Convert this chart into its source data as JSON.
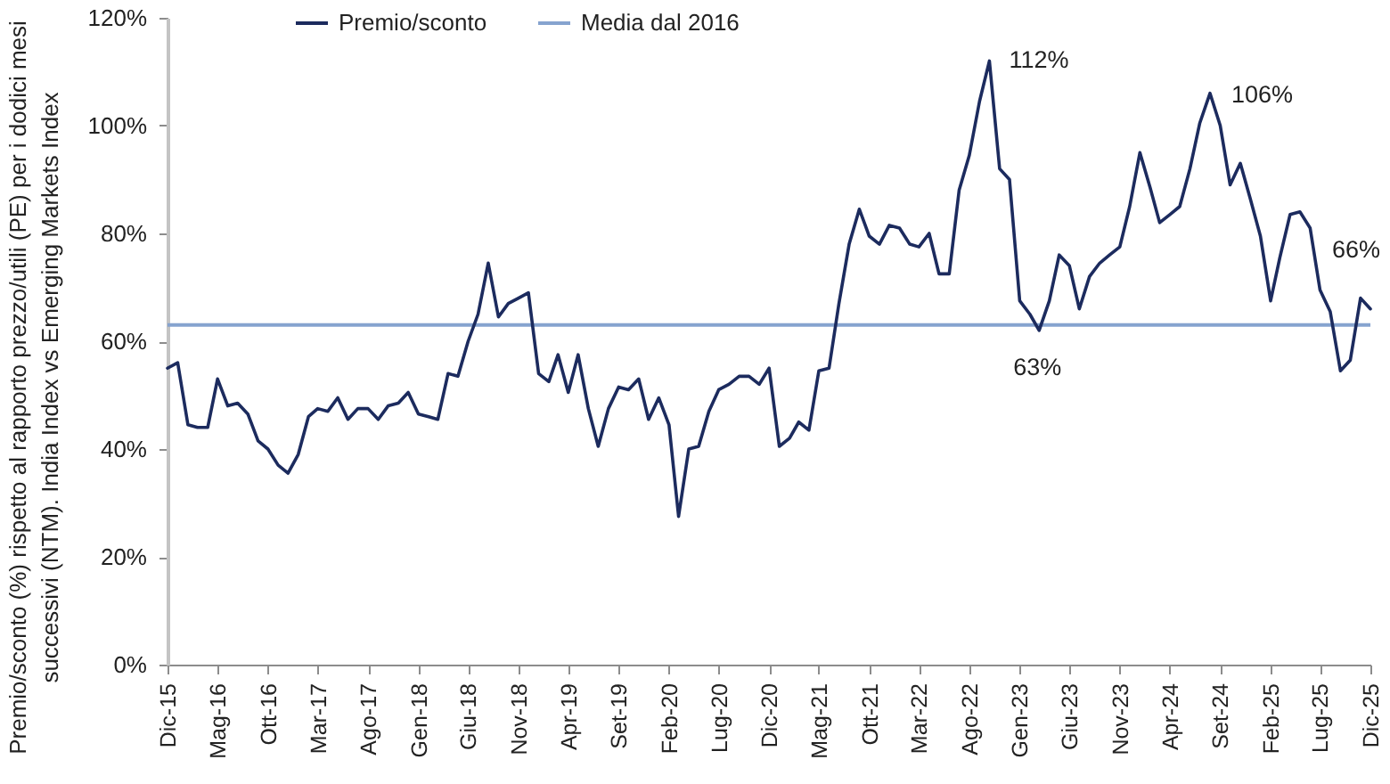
{
  "chart_data": {
    "type": "line",
    "ylabel": "Premio/sconto (%) rispetto al rapporto prezzo/utili (PE) per i dodici mesi successivi (NTM). India Index vs Emerging Markets Index",
    "x": [
      "2015-12",
      "2016-01",
      "2016-02",
      "2016-03",
      "2016-04",
      "2016-05",
      "2016-06",
      "2016-07",
      "2016-08",
      "2016-09",
      "2016-10",
      "2016-11",
      "2016-12",
      "2017-01",
      "2017-02",
      "2017-03",
      "2017-04",
      "2017-05",
      "2017-06",
      "2017-07",
      "2017-08",
      "2017-09",
      "2017-10",
      "2017-11",
      "2017-12",
      "2018-01",
      "2018-02",
      "2018-03",
      "2018-04",
      "2018-05",
      "2018-06",
      "2018-07",
      "2018-08",
      "2018-09",
      "2018-10",
      "2018-11",
      "2018-12",
      "2019-01",
      "2019-02",
      "2019-03",
      "2019-04",
      "2019-05",
      "2019-06",
      "2019-07",
      "2019-08",
      "2019-09",
      "2019-10",
      "2019-11",
      "2019-12",
      "2020-01",
      "2020-02",
      "2020-03",
      "2020-04",
      "2020-05",
      "2020-06",
      "2020-07",
      "2020-08",
      "2020-09",
      "2020-10",
      "2020-11",
      "2020-12",
      "2021-01",
      "2021-02",
      "2021-03",
      "2021-04",
      "2021-05",
      "2021-06",
      "2021-07",
      "2021-08",
      "2021-09",
      "2021-10",
      "2021-11",
      "2021-12",
      "2022-01",
      "2022-02",
      "2022-03",
      "2022-04",
      "2022-05",
      "2022-06",
      "2022-07",
      "2022-08",
      "2022-09",
      "2022-10",
      "2022-11",
      "2022-12",
      "2023-01",
      "2023-02",
      "2023-03",
      "2023-04",
      "2023-05",
      "2023-06",
      "2023-07",
      "2023-08",
      "2023-09",
      "2023-10",
      "2023-11",
      "2023-12",
      "2024-01",
      "2024-02",
      "2024-03",
      "2024-04",
      "2024-05",
      "2024-06",
      "2024-07",
      "2024-08",
      "2024-09",
      "2024-10",
      "2024-11",
      "2024-12",
      "2025-01",
      "2025-02",
      "2025-03",
      "2025-04",
      "2025-05",
      "2025-06",
      "2025-07",
      "2025-08",
      "2025-09",
      "2025-10",
      "2025-11",
      "2025-12"
    ],
    "series": [
      {
        "name": "Premio/sconto",
        "color": "#1c2b5e",
        "values": [
          55,
          56,
          44.5,
          44,
          44,
          53,
          48,
          48.5,
          46.5,
          41.5,
          40,
          37,
          35.5,
          39,
          46,
          47.5,
          47,
          49.5,
          45.5,
          47.5,
          47.5,
          45.5,
          48,
          48.5,
          50.5,
          46.5,
          46,
          45.5,
          54,
          53.5,
          60,
          65,
          74.5,
          64.5,
          67,
          68,
          69,
          54,
          52.5,
          57.5,
          50.5,
          57.5,
          47.5,
          40.5,
          47.5,
          51.5,
          51,
          53,
          45.5,
          49.5,
          44.5,
          27.5,
          40,
          40.5,
          47,
          51,
          52,
          53.5,
          53.5,
          52,
          55,
          40.5,
          42,
          45,
          43.5,
          54.5,
          55,
          67,
          78,
          84.5,
          79.5,
          78,
          81.5,
          81,
          78,
          77.5,
          80,
          72.5,
          72.5,
          88,
          94.5,
          104.5,
          112,
          92,
          90,
          67.5,
          65,
          62,
          67.5,
          76,
          74,
          66,
          72,
          74.5,
          76,
          77.5,
          85,
          95,
          88.5,
          82,
          83.5,
          85,
          92,
          100.5,
          106,
          100,
          89,
          93,
          86.5,
          79.5,
          67.5,
          75.5,
          83.5,
          84,
          81,
          69.5,
          65.5,
          54.5,
          56.5,
          68,
          66
        ]
      }
    ],
    "xlim": [
      "2015-12",
      "2025-12"
    ],
    "xticks": [
      {
        "value": "2015-12",
        "label": "Dic-15"
      },
      {
        "value": "2016-05",
        "label": "Mag-16"
      },
      {
        "value": "2016-10",
        "label": "Ott-16"
      },
      {
        "value": "2017-03",
        "label": "Mar-17"
      },
      {
        "value": "2017-08",
        "label": "Ago-17"
      },
      {
        "value": "2018-01",
        "label": "Gen-18"
      },
      {
        "value": "2018-06",
        "label": "Giu-18"
      },
      {
        "value": "2018-11",
        "label": "Nov-18"
      },
      {
        "value": "2019-04",
        "label": "Apr-19"
      },
      {
        "value": "2019-09",
        "label": "Set-19"
      },
      {
        "value": "2020-02",
        "label": "Feb-20"
      },
      {
        "value": "2020-07",
        "label": "Lug-20"
      },
      {
        "value": "2020-12",
        "label": "Dic-20"
      },
      {
        "value": "2021-05",
        "label": "Mag-21"
      },
      {
        "value": "2021-10",
        "label": "Ott-21"
      },
      {
        "value": "2022-03",
        "label": "Mar-22"
      },
      {
        "value": "2022-08",
        "label": "Ago-22"
      },
      {
        "value": "2023-01",
        "label": "Gen-23"
      },
      {
        "value": "2023-06",
        "label": "Giu-23"
      },
      {
        "value": "2023-11",
        "label": "Nov-23"
      },
      {
        "value": "2024-04",
        "label": "Apr-24"
      },
      {
        "value": "2024-09",
        "label": "Set-24"
      },
      {
        "value": "2025-02",
        "label": "Feb-25"
      },
      {
        "value": "2025-07",
        "label": "Lug-25"
      },
      {
        "value": "2025-12",
        "label": "Dic-25"
      }
    ],
    "ylim": [
      0,
      120
    ],
    "yticks": [
      {
        "value": 0,
        "label": "0%"
      },
      {
        "value": 20,
        "label": "20%"
      },
      {
        "value": 40,
        "label": "40%"
      },
      {
        "value": 60,
        "label": "60%"
      },
      {
        "value": 80,
        "label": "80%"
      },
      {
        "value": 100,
        "label": "100%"
      },
      {
        "value": 120,
        "label": "120%"
      }
    ],
    "ref_lines": [
      {
        "axis": "y",
        "value": 63,
        "label": "Media dal 2016",
        "color": "#86a3cf"
      }
    ],
    "annotations": [
      {
        "text": "112%",
        "x": "2022-10",
        "y": 112
      },
      {
        "text": "106%",
        "x": "2024-08",
        "y": 106
      },
      {
        "text": "63%",
        "x": "2023-03",
        "y": 63
      },
      {
        "text": "66%",
        "x": "2025-12",
        "y": 66
      }
    ],
    "legend": "top",
    "grid": false
  }
}
